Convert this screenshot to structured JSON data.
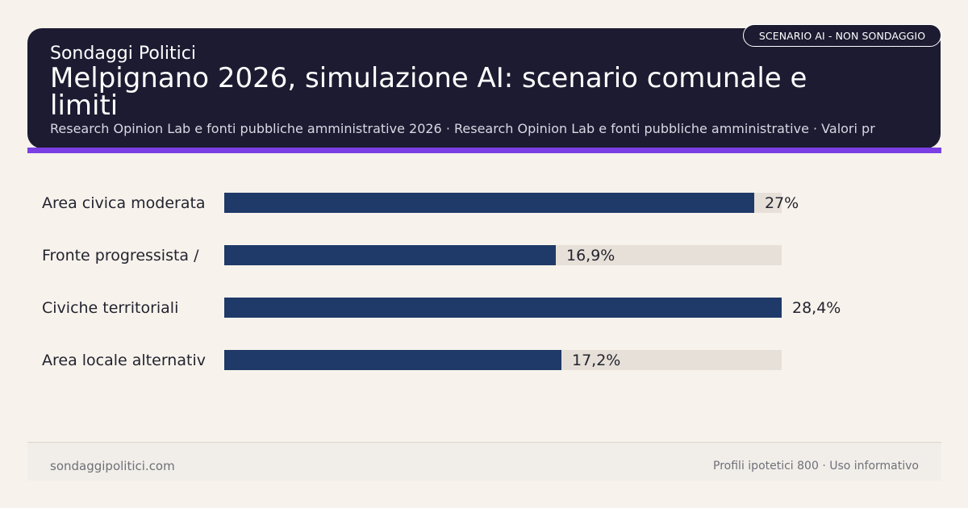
{
  "header": {
    "kicker": "Sondaggi Politici",
    "title": "Melpignano 2026, simulazione AI: scenario comunale e limiti",
    "subtitle": "Research Opinion Lab e fonti pubbliche amministrative 2026 · Research Opinion Lab e fonti pubbliche amministrative · Valori pr",
    "badge": "SCENARIO AI - NON SONDAGGIO"
  },
  "chart_data": {
    "type": "bar",
    "orientation": "horizontal",
    "categories": [
      "Area civica moderata",
      "Fronte progressista /",
      "Civiche territoriali",
      "Area locale alternativ"
    ],
    "values": [
      27,
      16.9,
      28.4,
      17.2
    ],
    "value_labels": [
      "27%",
      "16,9%",
      "28,4%",
      "17,2%"
    ],
    "xlim": [
      0,
      28.4
    ],
    "grid": false,
    "colors": {
      "bar": "#1f3a68",
      "track": "#e7e0d8"
    }
  },
  "footer": {
    "left": "sondaggipolitici.com",
    "right": "Profili ipotetici 800 · Uso informativo"
  },
  "colors": {
    "background": "#f7f3ec",
    "header_bg": "#1c1b31",
    "accent": "#7b3fe4"
  }
}
